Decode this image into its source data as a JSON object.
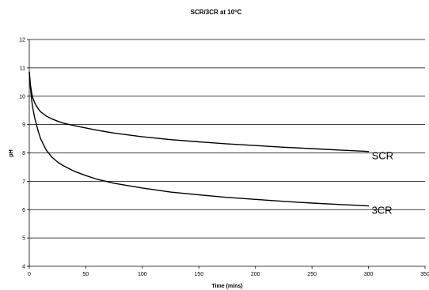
{
  "chart_data": {
    "type": "line",
    "title": "SCR/3CR at 10",
    "title_degree": "o",
    "title_unit": "C",
    "xlabel": "Time (mins)",
    "ylabel": "pH",
    "xlim": [
      0,
      350
    ],
    "ylim": [
      4,
      12
    ],
    "x_ticks": [
      0,
      50,
      100,
      150,
      200,
      250,
      300,
      350
    ],
    "y_ticks": [
      4,
      5,
      6,
      7,
      8,
      9,
      10,
      11,
      12
    ],
    "grid": "horizontal",
    "legend": "none",
    "series": [
      {
        "name": "SCR",
        "color": "#000000",
        "x": [
          0,
          1,
          2,
          3,
          5,
          8,
          10,
          15,
          20,
          25,
          30,
          40,
          50,
          60,
          75,
          100,
          125,
          150,
          175,
          200,
          225,
          250,
          275,
          300
        ],
        "y": [
          10.85,
          10.4,
          10.15,
          9.95,
          9.75,
          9.55,
          9.45,
          9.3,
          9.2,
          9.12,
          9.05,
          8.96,
          8.88,
          8.8,
          8.7,
          8.57,
          8.47,
          8.39,
          8.32,
          8.26,
          8.2,
          8.15,
          8.1,
          8.05
        ]
      },
      {
        "name": "3CR",
        "color": "#000000",
        "x": [
          0,
          1,
          2,
          3,
          5,
          8,
          10,
          15,
          20,
          25,
          30,
          40,
          50,
          60,
          75,
          100,
          125,
          150,
          175,
          200,
          225,
          250,
          275,
          300
        ],
        "y": [
          10.85,
          10.3,
          9.9,
          9.6,
          9.2,
          8.75,
          8.5,
          8.1,
          7.85,
          7.68,
          7.55,
          7.35,
          7.2,
          7.07,
          6.93,
          6.76,
          6.62,
          6.52,
          6.43,
          6.36,
          6.29,
          6.23,
          6.18,
          6.13
        ]
      }
    ]
  }
}
